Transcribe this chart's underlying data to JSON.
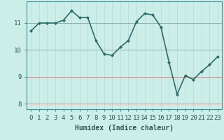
{
  "x": [
    0,
    1,
    2,
    3,
    4,
    5,
    6,
    7,
    8,
    9,
    10,
    11,
    12,
    13,
    14,
    15,
    16,
    17,
    18,
    19,
    20,
    21,
    22,
    23
  ],
  "y": [
    10.7,
    11.0,
    11.0,
    11.0,
    11.1,
    11.45,
    11.2,
    11.2,
    10.35,
    9.85,
    9.8,
    10.1,
    10.35,
    11.05,
    11.35,
    11.3,
    10.85,
    9.55,
    8.35,
    9.05,
    8.9,
    9.2,
    9.45,
    9.75
  ],
  "line_color": "#2e6b6b",
  "marker": "D",
  "marker_size": 2,
  "bg_color": "#cceee8",
  "grid_color_x": "#b8d8d8",
  "grid_color_y": "#c09090",
  "xlabel": "Humidex (Indice chaleur)",
  "ylim": [
    7.8,
    11.8
  ],
  "yticks": [
    8,
    9,
    10,
    11
  ],
  "xticks": [
    0,
    1,
    2,
    3,
    4,
    5,
    6,
    7,
    8,
    9,
    10,
    11,
    12,
    13,
    14,
    15,
    16,
    17,
    18,
    19,
    20,
    21,
    22,
    23
  ],
  "xlabel_fontsize": 7,
  "tick_fontsize": 6.5,
  "linewidth": 1.2
}
